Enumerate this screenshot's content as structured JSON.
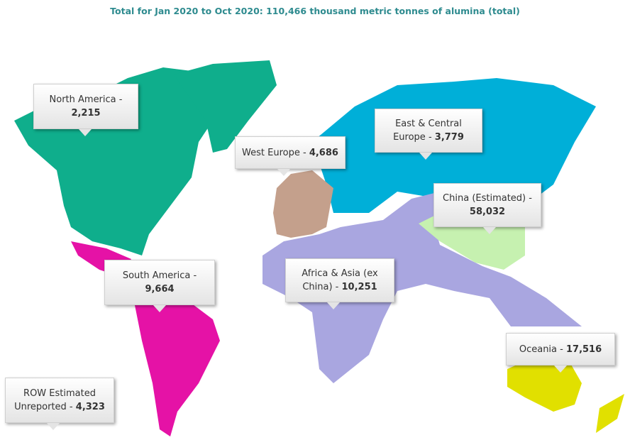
{
  "title": "Total for Jan 2020 to Oct 2020: 110,466 thousand metric tonnes of alumina  (total)",
  "regions": [
    {
      "name": "North America -",
      "value": "2,215"
    },
    {
      "name": "West Europe -",
      "value": "4,686"
    },
    {
      "name": "East & Central Europe -",
      "value": "3,779"
    },
    {
      "name": "China (Estimated) -",
      "value": "58,032"
    },
    {
      "name": "South America -",
      "value": "9,664"
    },
    {
      "name": "Africa & Asia (ex China) -",
      "value": "10,251"
    },
    {
      "name": "Oceania -",
      "value": "17,516"
    },
    {
      "name": "ROW Estimated Unreported -",
      "value": "4,323"
    }
  ]
}
